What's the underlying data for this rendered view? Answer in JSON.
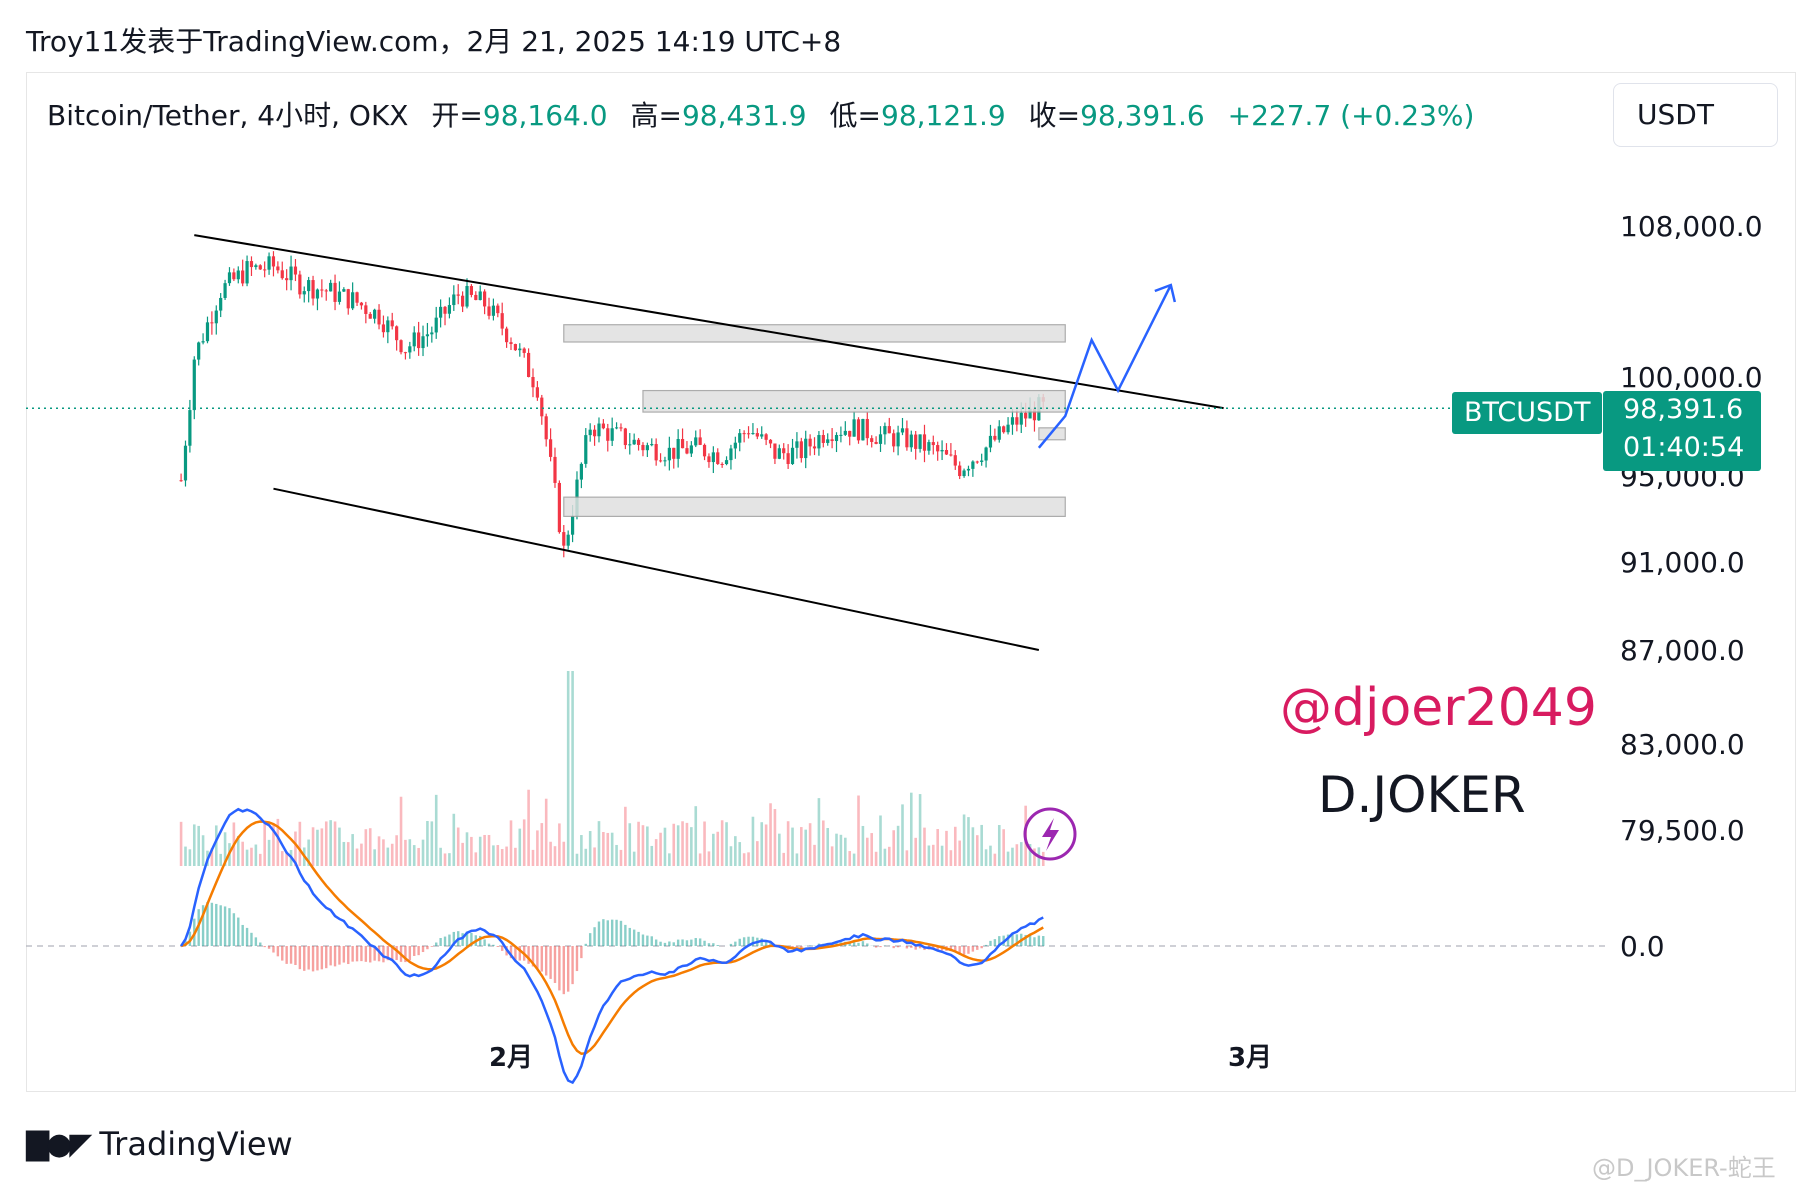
{
  "header": {
    "text": "Troy11发表于TradingView.com，2月 21, 2025 14:19 UTC+8"
  },
  "symbol": {
    "name": "Bitcoin/Tether, 4小时, OKX",
    "open_label": "开=",
    "open": "98,164.0",
    "high_label": "高=",
    "high": "98,431.9",
    "low_label": "低=",
    "low": "98,121.9",
    "close_label": "收=",
    "close": "98,391.6",
    "change": "+227.7 (+0.23%)"
  },
  "currency_button": "USDT",
  "price_tags": {
    "symbol": "BTCUSDT",
    "last_price": "98,391.6",
    "countdown": "01:40:54"
  },
  "watermarks": {
    "handle": "@djoer2049",
    "name": "D.JOKER",
    "corner": "@D_JOKER-蛇王"
  },
  "footer": {
    "logo_text": "TradingView"
  },
  "colors": {
    "up": "#089981",
    "down": "#f23645",
    "macd": "#2962ff",
    "signal": "#f57c00",
    "arrow": "#2962ff",
    "box_fill": "#e0e0e0",
    "icon": "#9c27b0"
  },
  "icons": [
    "lightning-icon",
    "tradingview-logo-icon"
  ],
  "chart_data": {
    "type": "candlestick",
    "interval": "4小时",
    "exchange": "OKX",
    "last_price": 98391.6,
    "y_axis": {
      "scale": "log",
      "tick_labels": [
        "108,000.0",
        "100,000.0",
        "95,000.0",
        "91,000.0",
        "87,000.0",
        "83,000.0",
        "79,500.0"
      ],
      "ticks": [
        108000,
        100000,
        95000,
        91000,
        87000,
        83000,
        79500
      ]
    },
    "x_axis": {
      "tick_labels": [
        "2月",
        "3月"
      ]
    },
    "macd_pane": {
      "zero_label": "0.0"
    },
    "price_points": [
      [
        "2025-01-20",
        101000
      ],
      [
        "2025-01-21",
        104500
      ],
      [
        "2025-01-22",
        105600
      ],
      [
        "2025-01-23",
        105800
      ],
      [
        "2025-01-24",
        104900
      ],
      [
        "2025-01-25",
        104500
      ],
      [
        "2025-01-26",
        104000
      ],
      [
        "2025-01-27",
        103200
      ],
      [
        "2025-01-28",
        101500
      ],
      [
        "2025-01-29",
        102400
      ],
      [
        "2025-01-30",
        104300
      ],
      [
        "2025-01-31",
        103800
      ],
      [
        "2025-02-01",
        102000
      ],
      [
        "2025-02-02",
        99500
      ],
      [
        "2025-02-03",
        91500
      ],
      [
        "2025-02-04",
        97500
      ],
      [
        "2025-02-05",
        97000
      ],
      [
        "2025-02-06",
        96500
      ],
      [
        "2025-02-07",
        96200
      ],
      [
        "2025-02-08",
        96400
      ],
      [
        "2025-02-09",
        96000
      ],
      [
        "2025-02-10",
        97400
      ],
      [
        "2025-02-11",
        96100
      ],
      [
        "2025-02-12",
        96200
      ],
      [
        "2025-02-13",
        97300
      ],
      [
        "2025-02-14",
        97400
      ],
      [
        "2025-02-15",
        97000
      ],
      [
        "2025-02-16",
        96800
      ],
      [
        "2025-02-17",
        96300
      ],
      [
        "2025-02-18",
        95400
      ],
      [
        "2025-02-19",
        96400
      ],
      [
        "2025-02-20",
        97600
      ],
      [
        "2025-02-21",
        98391.6
      ]
    ],
    "drawings": {
      "trendlines": [
        {
          "from": [
            "2025-01-20",
            107500
          ],
          "to": [
            "2025-02-28",
            98400
          ]
        },
        {
          "from": [
            "2025-01-23",
            94400
          ],
          "to": [
            "2025-02-21",
            87000
          ]
        }
      ],
      "zones": [
        {
          "from": "2025-02-03",
          "to": "2025-02-22",
          "low": 101800,
          "high": 102700
        },
        {
          "from": "2025-02-06",
          "to": "2025-02-22",
          "low": 98200,
          "high": 99300
        },
        {
          "from": "2025-02-21",
          "to": "2025-02-22",
          "low": 96800,
          "high": 97400
        },
        {
          "from": "2025-02-03",
          "to": "2025-02-22",
          "low": 93100,
          "high": 94000
        }
      ],
      "projection_arrow": [
        [
          "2025-02-21",
          96400
        ],
        [
          "2025-02-22",
          98000
        ],
        [
          "2025-02-23",
          101900
        ],
        [
          "2025-02-24",
          99300
        ],
        [
          "2025-02-26",
          104800
        ]
      ]
    }
  }
}
